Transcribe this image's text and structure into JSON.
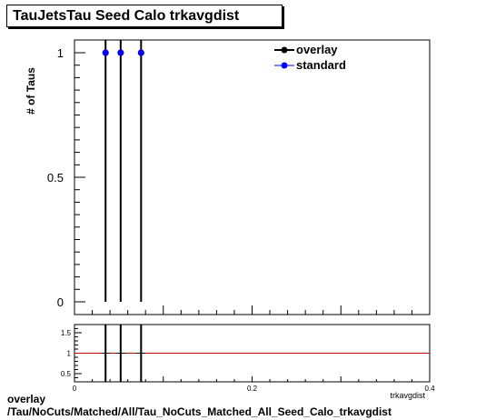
{
  "title": "TauJetsTau Seed Calo trkavgdist",
  "footer": {
    "line1": "overlay",
    "line2": "/Tau/NoCuts/Matched/All/Tau_NoCuts_Matched_All_Seed_Calo_trkavgdist"
  },
  "colors": {
    "overlay": "#000000",
    "standard": "#0000ff",
    "ratio_line": "#cc0000"
  },
  "chart_data": [
    {
      "type": "scatter",
      "title": "TauJetsTau Seed Calo trkavgdist",
      "xlabel": "trkavgdist",
      "ylabel": "# of Taus",
      "xlim": [
        0,
        0.4
      ],
      "ylim": [
        0,
        1
      ],
      "y_ticks": [
        "0",
        "0.5",
        "1"
      ],
      "series": [
        {
          "name": "overlay",
          "x": [
            0.035,
            0.052,
            0.075
          ],
          "y": [
            1,
            1,
            1
          ],
          "yerr": [
            1,
            1,
            1
          ]
        },
        {
          "name": "standard",
          "x": [
            0.035,
            0.052,
            0.075
          ],
          "y": [
            1,
            1,
            1
          ],
          "yerr": [
            1,
            1,
            1
          ]
        }
      ],
      "legend": "top-right",
      "grid": false
    },
    {
      "type": "line",
      "xlabel": "trkavgdist",
      "xlim": [
        0,
        0.4
      ],
      "ylim": [
        0.3,
        1.7
      ],
      "x_ticks": [
        "0",
        "0.2",
        "0.4"
      ],
      "y_ticks": [
        "0.5",
        "1",
        "1.5"
      ],
      "reference_line": 1,
      "series": [
        {
          "x": [
            0.035,
            0.052,
            0.075
          ],
          "y": [
            1,
            1,
            1
          ]
        }
      ]
    }
  ]
}
